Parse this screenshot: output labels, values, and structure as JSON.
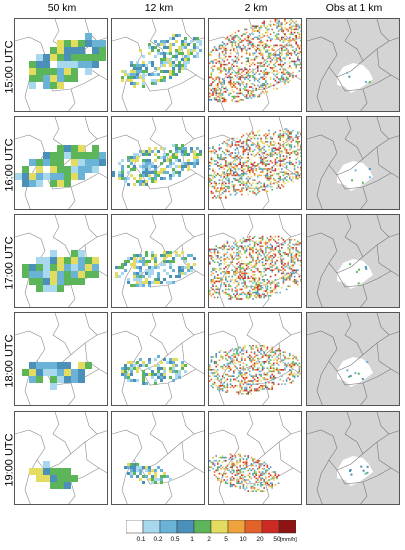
{
  "columns": [
    {
      "id": "c50",
      "title": "50 km"
    },
    {
      "id": "c12",
      "title": "12 km"
    },
    {
      "id": "c2",
      "title": "2 km"
    },
    {
      "id": "obs",
      "title": "Obs at 1 km"
    }
  ],
  "rows": [
    {
      "label": "15:00 UTC"
    },
    {
      "label": "16:00 UTC"
    },
    {
      "label": "17:00 UTC"
    },
    {
      "label": "18:00 UTC"
    },
    {
      "label": "19:00 UTC"
    }
  ],
  "colorbar": {
    "ticks": [
      "0.1",
      "0.2",
      "0.5",
      "1",
      "2",
      "5",
      "10",
      "20",
      "50"
    ],
    "unit": "[mm/h]",
    "colors": [
      "#ffffff",
      "#a7d8ee",
      "#6bb3d6",
      "#4a90b8",
      "#5db55a",
      "#e3dc5e",
      "#f0a33c",
      "#e2622a",
      "#cc2a22",
      "#8e1414"
    ]
  },
  "chart_data": {
    "type": "heatmap",
    "panels": "5 rows (time) x 4 columns (resolution) of precipitation maps",
    "row_times": [
      "15:00 UTC",
      "16:00 UTC",
      "17:00 UTC",
      "18:00 UTC",
      "19:00 UTC"
    ],
    "column_resolutions": [
      "50 km",
      "12 km",
      "2 km",
      "Obs at 1 km"
    ],
    "colorbar_bounds_mm_per_h": [
      0.1,
      0.2,
      0.5,
      1,
      2,
      5,
      10,
      20,
      50
    ],
    "obs_background_color": "#d4d4d4"
  }
}
